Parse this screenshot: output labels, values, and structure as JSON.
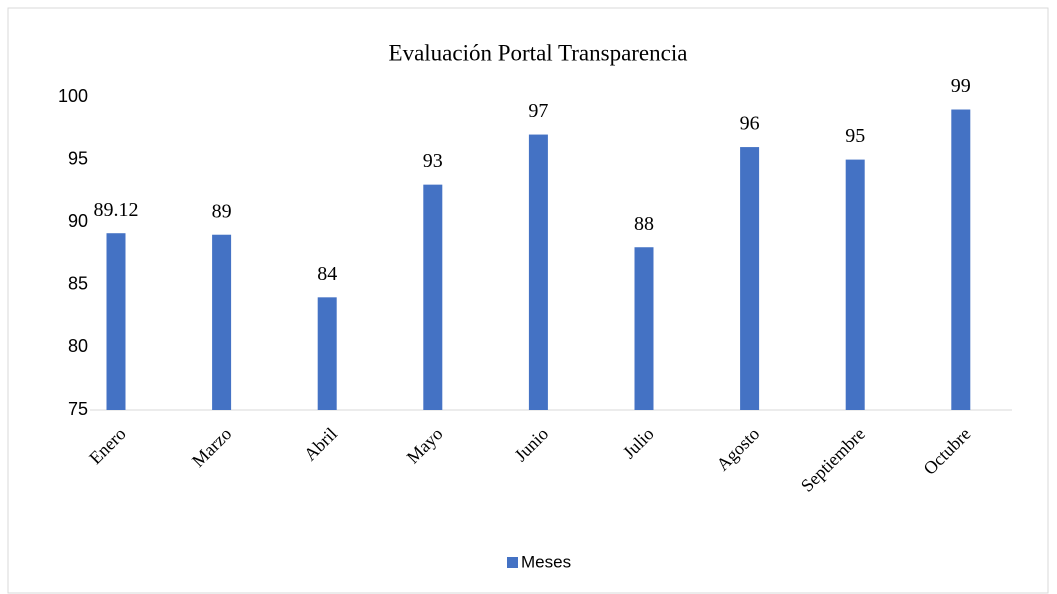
{
  "chart_data": {
    "type": "bar",
    "title": "Evaluación Portal Transparencia",
    "categories": [
      "Enero",
      "Marzo",
      "Abril",
      "Mayo",
      "Junio",
      "Julio",
      "Agosto",
      "Septiembre",
      "Octubre"
    ],
    "series": [
      {
        "name": "Meses",
        "color": "#4472c4",
        "values": [
          89.12,
          89,
          84,
          93,
          97,
          88,
          96,
          95,
          99
        ]
      }
    ],
    "ylim": [
      75,
      100
    ],
    "yticks": [
      75,
      80,
      85,
      90,
      95,
      100
    ],
    "grid": false,
    "legend": "bottom"
  }
}
